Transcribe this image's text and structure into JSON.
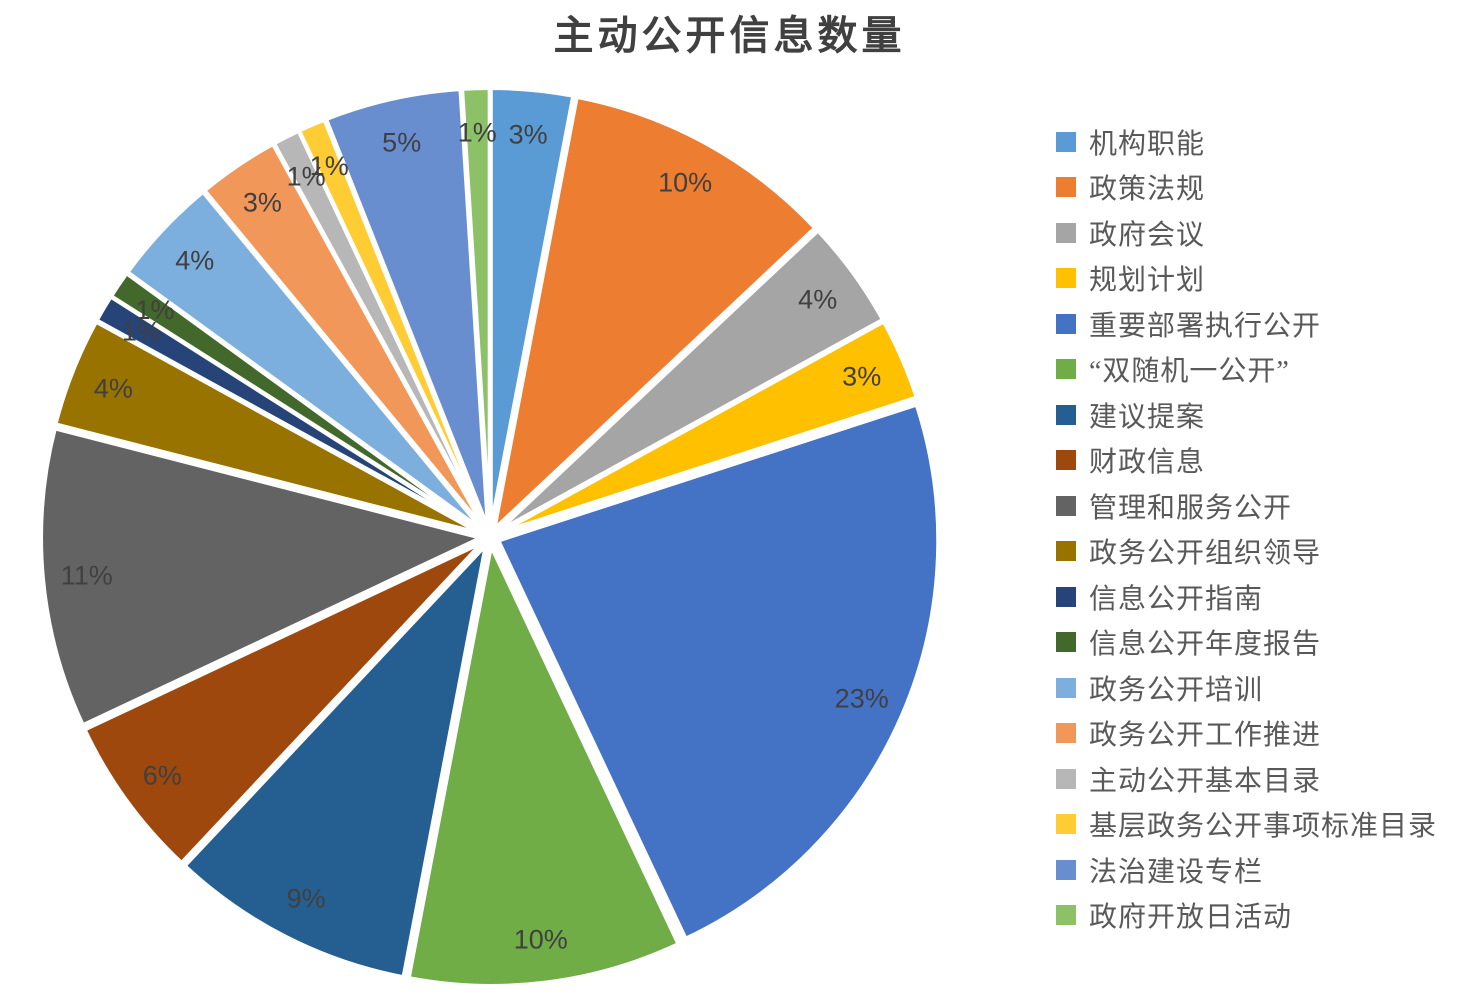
{
  "title": "主动公开信息数量",
  "chart_data": {
    "type": "pie",
    "title": "主动公开信息数量",
    "legend_position": "right",
    "start_angle_deg": 0,
    "direction": "clockwise",
    "exploded": true,
    "data_label_format": "percent",
    "label_text_color": "#404040",
    "legend_text_color": "#595959",
    "title_text_color": "#404040",
    "slices": [
      {
        "label": "机构职能",
        "value_pct": 3,
        "data_label": "3%",
        "color": "#5B9BD5"
      },
      {
        "label": "政策法规",
        "value_pct": 10,
        "data_label": "10%",
        "color": "#ED7D31"
      },
      {
        "label": "政府会议",
        "value_pct": 4,
        "data_label": "4%",
        "color": "#A5A5A5"
      },
      {
        "label": "规划计划",
        "value_pct": 3,
        "data_label": "3%",
        "color": "#FFC000"
      },
      {
        "label": "重要部署执行公开",
        "value_pct": 23,
        "data_label": "23%",
        "color": "#4472C4"
      },
      {
        "label": "“双随机一公开”",
        "value_pct": 10,
        "data_label": "10%",
        "color": "#70AD47"
      },
      {
        "label": "建议提案",
        "value_pct": 9,
        "data_label": "9%",
        "color": "#255E91"
      },
      {
        "label": "财政信息",
        "value_pct": 6,
        "data_label": "6%",
        "color": "#9E480E"
      },
      {
        "label": "管理和服务公开",
        "value_pct": 11,
        "data_label": "11%",
        "color": "#636363"
      },
      {
        "label": "政务公开组织领导",
        "value_pct": 4,
        "data_label": "4%",
        "color": "#997300"
      },
      {
        "label": "信息公开指南",
        "value_pct": 1,
        "data_label": "1%",
        "color": "#264478"
      },
      {
        "label": "信息公开年度报告",
        "value_pct": 1,
        "data_label": "1%",
        "color": "#43682B"
      },
      {
        "label": "政务公开培训",
        "value_pct": 4,
        "data_label": "4%",
        "color": "#7CAFDD"
      },
      {
        "label": "政务公开工作推进",
        "value_pct": 3,
        "data_label": "3%",
        "color": "#F1975A"
      },
      {
        "label": "主动公开基本目录",
        "value_pct": 1,
        "data_label": "1%",
        "color": "#B7B7B7"
      },
      {
        "label": "基层政务公开事项标准目录",
        "value_pct": 1,
        "data_label": "1%",
        "color": "#FFCD33"
      },
      {
        "label": "法治建设专栏",
        "value_pct": 5,
        "data_label": "5%",
        "color": "#698ED0"
      },
      {
        "label": "政府开放日活动",
        "value_pct": 1,
        "data_label": "1%",
        "color": "#8CC168"
      }
    ]
  }
}
